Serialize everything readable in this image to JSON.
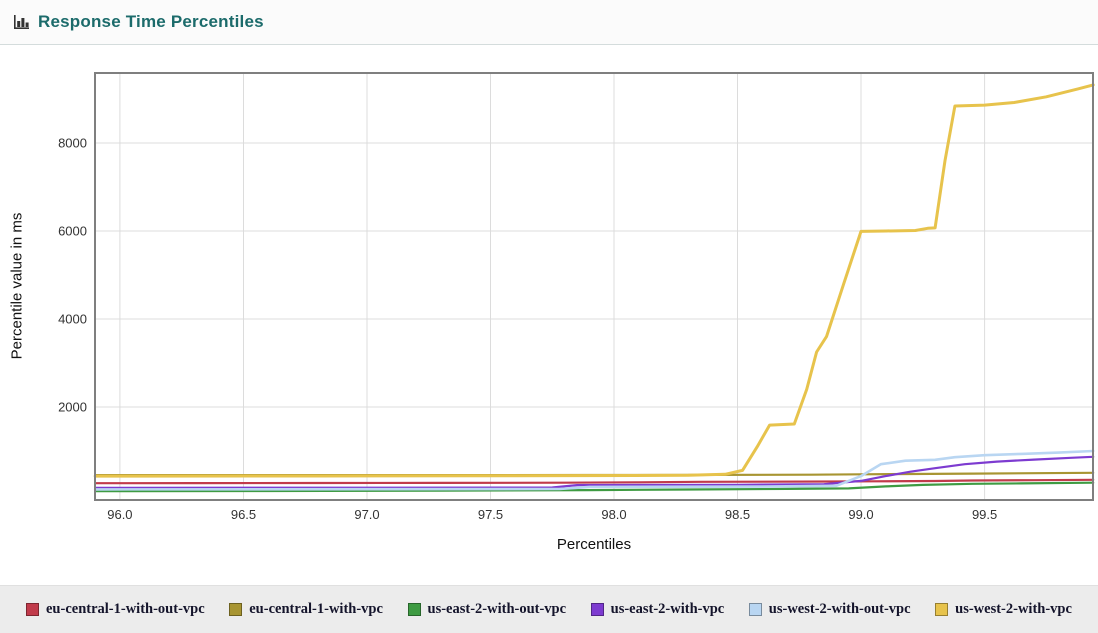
{
  "header": {
    "title": "Response Time Percentiles",
    "title_color": "#1c6b6b"
  },
  "chart_data": {
    "type": "line",
    "title": "Response Time Percentiles",
    "xlabel": "Percentiles",
    "ylabel": "Percentile value in ms",
    "xlim": [
      95.899,
      99.939
    ],
    "ylim": [
      -113,
      9590
    ],
    "xticks": [
      96.0,
      96.5,
      97.0,
      97.5,
      98.0,
      98.5,
      99.0,
      99.5
    ],
    "yticks": [
      2000,
      4000,
      6000,
      8000
    ],
    "grid": true,
    "grid_color": "#dcdcdc",
    "border_color": "#7f7f7f",
    "legend_position": "bottom",
    "series": [
      {
        "name": "eu-central-1-with-out-vpc",
        "color": "#c13b4b",
        "width": 2.2,
        "points": [
          [
            95.9,
            268
          ],
          [
            96.3,
            270
          ],
          [
            96.8,
            273
          ],
          [
            97.3,
            276
          ],
          [
            97.8,
            280
          ],
          [
            98.1,
            290
          ],
          [
            98.35,
            300
          ],
          [
            98.6,
            303
          ],
          [
            98.9,
            307
          ],
          [
            99.05,
            312
          ],
          [
            99.3,
            318
          ],
          [
            99.45,
            330
          ],
          [
            99.7,
            338
          ],
          [
            99.94,
            345
          ]
        ]
      },
      {
        "name": "eu-central-1-with-vpc",
        "color": "#a89532",
        "width": 2.2,
        "points": [
          [
            95.9,
            452
          ],
          [
            96.5,
            452
          ],
          [
            97.2,
            453
          ],
          [
            97.9,
            455
          ],
          [
            98.4,
            458
          ],
          [
            98.8,
            462
          ],
          [
            99.0,
            470
          ],
          [
            99.2,
            478
          ],
          [
            99.45,
            488
          ],
          [
            99.7,
            495
          ],
          [
            99.94,
            505
          ]
        ]
      },
      {
        "name": "us-east-2-with-out-vpc",
        "color": "#3e9b42",
        "width": 2.2,
        "points": [
          [
            95.9,
            88
          ],
          [
            96.6,
            92
          ],
          [
            97.3,
            100
          ],
          [
            97.9,
            112
          ],
          [
            98.3,
            125
          ],
          [
            98.7,
            140
          ],
          [
            98.95,
            150
          ],
          [
            99.1,
            195
          ],
          [
            99.25,
            230
          ],
          [
            99.45,
            255
          ],
          [
            99.65,
            265
          ],
          [
            99.94,
            280
          ]
        ]
      },
      {
        "name": "us-east-2-with-vpc",
        "color": "#7d3bd0",
        "width": 2.2,
        "points": [
          [
            95.9,
            163
          ],
          [
            97.0,
            166
          ],
          [
            97.75,
            170
          ],
          [
            97.85,
            225
          ],
          [
            98.5,
            232
          ],
          [
            98.85,
            245
          ],
          [
            99.0,
            320
          ],
          [
            99.1,
            430
          ],
          [
            99.2,
            530
          ],
          [
            99.3,
            610
          ],
          [
            99.42,
            700
          ],
          [
            99.55,
            760
          ],
          [
            99.7,
            805
          ],
          [
            99.85,
            845
          ],
          [
            99.94,
            868
          ]
        ]
      },
      {
        "name": "us-west-2-with-out-vpc",
        "color": "#b9d6f2",
        "width": 2.6,
        "points": [
          [
            95.9,
            128
          ],
          [
            97.0,
            132
          ],
          [
            97.78,
            138
          ],
          [
            97.9,
            185
          ],
          [
            98.6,
            192
          ],
          [
            98.9,
            210
          ],
          [
            99.0,
            430
          ],
          [
            99.08,
            700
          ],
          [
            99.18,
            780
          ],
          [
            99.3,
            800
          ],
          [
            99.38,
            860
          ],
          [
            99.5,
            905
          ],
          [
            99.65,
            935
          ],
          [
            99.8,
            965
          ],
          [
            99.94,
            1000
          ]
        ]
      },
      {
        "name": "us-west-2-with-vpc",
        "color": "#e7c34c",
        "width": 3,
        "points": [
          [
            95.9,
            430
          ],
          [
            96.8,
            432
          ],
          [
            97.6,
            438
          ],
          [
            98.3,
            448
          ],
          [
            98.45,
            470
          ],
          [
            98.52,
            560
          ],
          [
            98.58,
            1100
          ],
          [
            98.63,
            1590
          ],
          [
            98.73,
            1615
          ],
          [
            98.78,
            2400
          ],
          [
            98.82,
            3250
          ],
          [
            98.86,
            3600
          ],
          [
            98.93,
            4800
          ],
          [
            99.0,
            5990
          ],
          [
            99.1,
            6000
          ],
          [
            99.22,
            6010
          ],
          [
            99.27,
            6060
          ],
          [
            99.3,
            6070
          ],
          [
            99.34,
            7600
          ],
          [
            99.38,
            8840
          ],
          [
            99.5,
            8860
          ],
          [
            99.62,
            8920
          ],
          [
            99.75,
            9050
          ],
          [
            99.88,
            9230
          ],
          [
            99.94,
            9320
          ]
        ]
      }
    ]
  }
}
